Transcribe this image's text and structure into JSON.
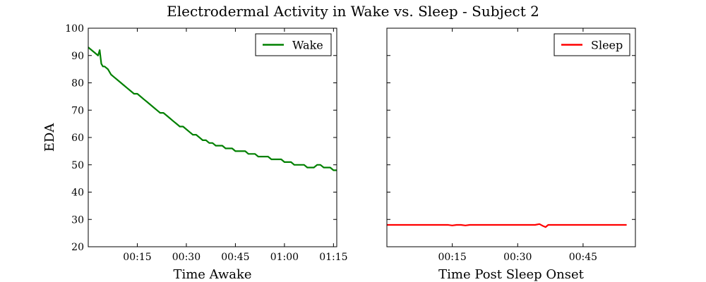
{
  "title": "Electrodermal Activity in Wake vs. Sleep - Subject 2",
  "ylabel": "EDA",
  "colors": {
    "wake": "#008000",
    "sleep": "#ff0000"
  },
  "chart_data": [
    {
      "type": "line",
      "xlabel": "Time Awake",
      "ylabel": "EDA",
      "xlim": [
        0,
        76
      ],
      "ylim": [
        20,
        100
      ],
      "x_tick_values": [
        15,
        30,
        45,
        60,
        75
      ],
      "x_tick_labels": [
        "00:15",
        "00:30",
        "00:45",
        "01:00",
        "01:15"
      ],
      "y_tick_values": [
        20,
        30,
        40,
        50,
        60,
        70,
        80,
        90,
        100
      ],
      "y_tick_labels": [
        "20",
        "30",
        "40",
        "50",
        "60",
        "70",
        "80",
        "90",
        "100"
      ],
      "legend": "top-right",
      "series": [
        {
          "name": "Wake",
          "color": "#008000",
          "x": [
            0,
            1,
            2,
            3,
            3.5,
            4,
            4.5,
            5,
            6,
            7,
            8,
            9,
            10,
            11,
            12,
            13,
            14,
            15,
            16,
            17,
            18,
            19,
            20,
            21,
            22,
            23,
            24,
            25,
            26,
            27,
            28,
            29,
            30,
            31,
            32,
            33,
            34,
            35,
            36,
            37,
            38,
            39,
            40,
            41,
            42,
            43,
            44,
            45,
            46,
            47,
            48,
            49,
            50,
            51,
            52,
            53,
            54,
            55,
            56,
            57,
            58,
            59,
            60,
            61,
            62,
            63,
            64,
            65,
            66,
            67,
            68,
            69,
            70,
            71,
            72,
            73,
            74,
            75,
            76
          ],
          "y": [
            93,
            92,
            91,
            90,
            92,
            87,
            86,
            86,
            85,
            83,
            82,
            81,
            80,
            79,
            78,
            77,
            76,
            76,
            75,
            74,
            73,
            72,
            71,
            70,
            69,
            69,
            68,
            67,
            66,
            65,
            64,
            64,
            63,
            62,
            61,
            61,
            60,
            59,
            59,
            58,
            58,
            57,
            57,
            57,
            56,
            56,
            56,
            55,
            55,
            55,
            55,
            54,
            54,
            54,
            53,
            53,
            53,
            53,
            52,
            52,
            52,
            52,
            51,
            51,
            51,
            50,
            50,
            50,
            50,
            49,
            49,
            49,
            50,
            50,
            49,
            49,
            49,
            48,
            48
          ]
        }
      ]
    },
    {
      "type": "line",
      "xlabel": "Time Post Sleep Onset",
      "ylabel": "",
      "xlim": [
        0,
        57
      ],
      "ylim": [
        20,
        100
      ],
      "x_tick_values": [
        15,
        30,
        45
      ],
      "x_tick_labels": [
        "00:15",
        "00:30",
        "00:45"
      ],
      "y_tick_values": [
        20,
        30,
        40,
        50,
        60,
        70,
        80,
        90,
        100
      ],
      "y_tick_labels": [],
      "legend": "top-right",
      "series": [
        {
          "name": "Sleep",
          "color": "#ff0000",
          "x": [
            0,
            5,
            10,
            14,
            15,
            16,
            17,
            18,
            19,
            25,
            30,
            34,
            35,
            35.7,
            36.4,
            37,
            40,
            45,
            50,
            55
          ],
          "y": [
            28,
            28,
            28,
            28,
            27.8,
            28,
            28,
            27.8,
            28,
            28,
            28,
            28,
            28.3,
            27.7,
            27.2,
            28,
            28,
            28,
            28,
            28
          ]
        }
      ]
    }
  ]
}
